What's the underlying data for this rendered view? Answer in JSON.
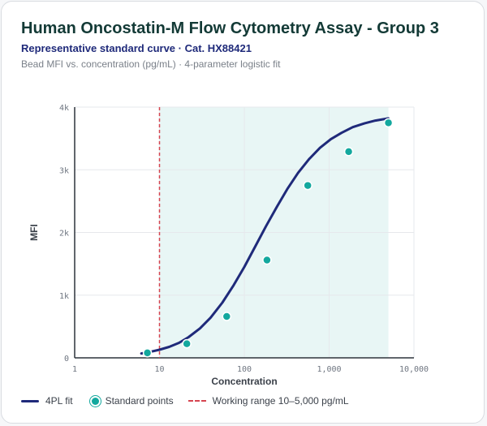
{
  "header": {
    "title": "Human Oncostatin-M Flow Cytometry Assay - Group 3",
    "subtitle": "Representative standard curve · Cat. HX88421",
    "caption": "Bead MFI vs. concentration (pg/mL) · 4-parameter logistic fit"
  },
  "colors": {
    "fit_line": "#1f2a7a",
    "points": "#13a89e",
    "working_range_line": "#d64550",
    "working_range_fill": "#e8f6f5"
  },
  "chart_data": {
    "type": "scatter",
    "xscale": "log",
    "xlabel": "Concentration",
    "ylabel": "MFI",
    "xlim": [
      1,
      10000
    ],
    "ylim": [
      0,
      4000
    ],
    "x_ticks": [
      {
        "value": 1,
        "label": "1"
      },
      {
        "value": 10,
        "label": "10"
      },
      {
        "value": 100,
        "label": "100"
      },
      {
        "value": 1000,
        "label": "1,000"
      },
      {
        "value": 10000,
        "label": "10,000"
      }
    ],
    "y_ticks": [
      {
        "value": 0,
        "label": "0"
      },
      {
        "value": 1000,
        "label": "1k"
      },
      {
        "value": 2000,
        "label": "2k"
      },
      {
        "value": 3000,
        "label": "3k"
      },
      {
        "value": 4000,
        "label": "4k"
      }
    ],
    "grid": true,
    "working_range": [
      10,
      5000
    ],
    "series": [
      {
        "name": "4PL fit",
        "kind": "line",
        "x": [
          6.1,
          8,
          10,
          13,
          17,
          22,
          30,
          40,
          55,
          75,
          100,
          135,
          180,
          240,
          320,
          430,
          580,
          780,
          1050,
          1400,
          1900,
          2600,
          3500,
          5000
        ],
        "y": [
          70,
          100,
          130,
          175,
          240,
          330,
          470,
          640,
          880,
          1160,
          1450,
          1780,
          2100,
          2400,
          2690,
          2950,
          3170,
          3350,
          3490,
          3590,
          3680,
          3740,
          3785,
          3820
        ]
      },
      {
        "name": "Standard points",
        "kind": "points",
        "x": [
          7.2,
          21,
          62,
          185,
          560,
          1700,
          5000
        ],
        "y": [
          80,
          225,
          660,
          1560,
          2750,
          3290,
          3750
        ]
      }
    ]
  },
  "legend": {
    "fit": "4PL fit",
    "points": "Standard points",
    "range": "Working range 10–5,000 pg/mL"
  }
}
